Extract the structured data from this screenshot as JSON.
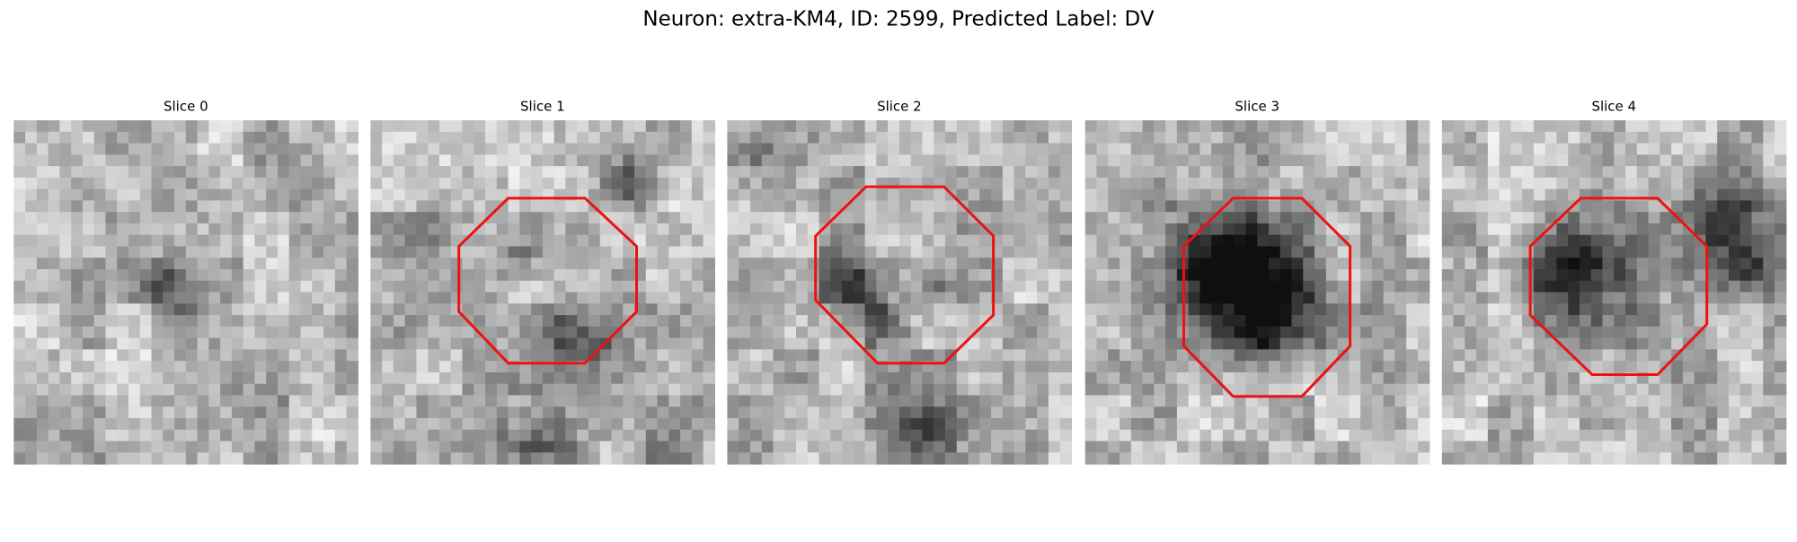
{
  "title": "Neuron: extra-KM4, ID: 2599, Predicted Label: DV",
  "panels": [
    {
      "title": "Slice 0"
    },
    {
      "title": "Slice 1"
    },
    {
      "title": "Slice 2"
    },
    {
      "title": "Slice 3"
    },
    {
      "title": "Slice 4"
    }
  ]
}
